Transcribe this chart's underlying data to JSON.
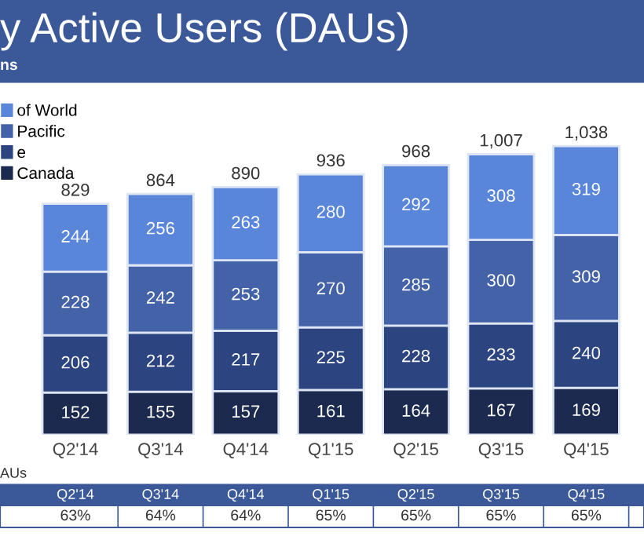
{
  "chart_data": {
    "type": "bar",
    "stacked": true,
    "title": "y Active Users (DAUs)",
    "subtitle": "ns",
    "categories": [
      "Q2'14",
      "Q3'14",
      "Q4'14",
      "Q1'15",
      "Q2'15",
      "Q3'15",
      "Q4'15"
    ],
    "series": [
      {
        "name": "Canada",
        "color": "#1b2a4e",
        "values": [
          152,
          155,
          157,
          161,
          164,
          167,
          169
        ]
      },
      {
        "name": "e",
        "color": "#2c4580",
        "values": [
          206,
          212,
          217,
          225,
          228,
          233,
          240
        ]
      },
      {
        "name": "Pacific",
        "color": "#4462a8",
        "values": [
          228,
          242,
          253,
          270,
          285,
          300,
          309
        ]
      },
      {
        "name": "of World",
        "color": "#5a86da",
        "values": [
          244,
          256,
          263,
          280,
          292,
          308,
          319
        ]
      }
    ],
    "data_labels": true,
    "totals": [
      "829",
      "864",
      "890",
      "936",
      "968",
      "1,007",
      "1,038"
    ],
    "legend": "top left",
    "tick_labels": "x",
    "grid": false,
    "annotations": [
      "AUs",
      "63%",
      "64%",
      "64%",
      "65%",
      "65%",
      "65%",
      "65%"
    ]
  }
}
